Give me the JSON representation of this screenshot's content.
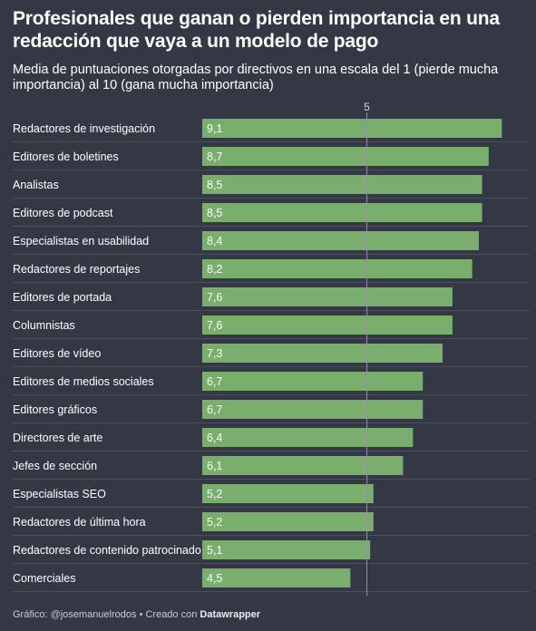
{
  "title": "Profesionales que ganan o pierden importancia en una redacción que vaya a un modelo de pago",
  "subtitle": "Media de puntuaciones otorgadas por directivos en una escala del 1 (pierde mucha importancia) al 10 (gana mucha importancia)",
  "footer": {
    "prefix": "Gráfico: @josemanuelrodos • Creado con ",
    "brand": "Datawrapper"
  },
  "colors": {
    "background": "#333844",
    "bar": "#79ae6d",
    "row_divider": "#4a505c",
    "reference_line": "#8d929c"
  },
  "chart_data": {
    "type": "bar",
    "orientation": "horizontal",
    "categories": [
      "Redactores de investigación",
      "Editores de boletines",
      "Analistas",
      "Editores de podcast",
      "Especialistas en usabilidad",
      "Redactores de reportajes",
      "Editores de portada",
      "Columnistas",
      "Editores de vídeo",
      "Editores de medios sociales",
      "Editores gráficos",
      "Directores de arte",
      "Jefes de sección",
      "Especialistas SEO",
      "Redactores de última hora",
      "Redactores de contenido patrocinado",
      "Comerciales"
    ],
    "values": [
      9.1,
      8.7,
      8.5,
      8.5,
      8.4,
      8.2,
      7.6,
      7.6,
      7.3,
      6.7,
      6.7,
      6.4,
      6.1,
      5.2,
      5.2,
      5.1,
      4.5
    ],
    "value_labels": [
      "9,1",
      "8,7",
      "8,5",
      "8,5",
      "8,4",
      "8,2",
      "7,6",
      "7,6",
      "7,3",
      "6,7",
      "6,7",
      "6,4",
      "6,1",
      "5,2",
      "5,2",
      "5,1",
      "4,5"
    ],
    "xlim": [
      0,
      10
    ],
    "reference_line": {
      "value": 5,
      "label": "5"
    }
  }
}
